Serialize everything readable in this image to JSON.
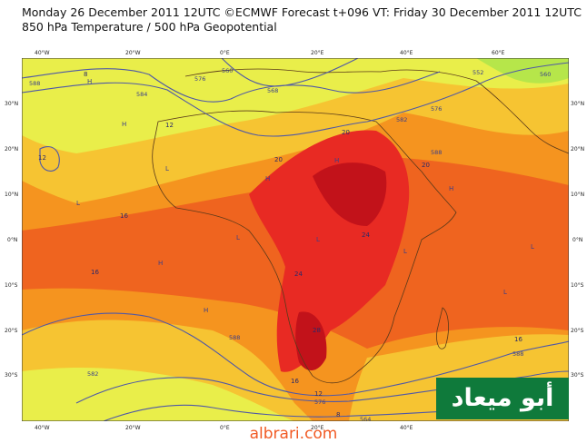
{
  "header": {
    "line1": "Monday 26 December 2011 12UTC ©ECMWF Forecast t+096 VT: Friday 30 December 2011 12UTC",
    "line2": "850 hPa Temperature / 500 hPa Geopotential"
  },
  "axes": {
    "lon_labels": [
      "40°W",
      "20°W",
      "0°E",
      "20°E",
      "40°E",
      "60°E"
    ],
    "lat_labels": [
      "30°N",
      "20°N",
      "10°N",
      "0°N",
      "10°S",
      "20°S",
      "30°S"
    ]
  },
  "contour_labels": {
    "temperature": [
      "8",
      "12",
      "16",
      "16",
      "12",
      "20",
      "20",
      "20",
      "24",
      "24",
      "28",
      "16",
      "12",
      "16",
      "8"
    ],
    "geopotential": [
      "588",
      "584",
      "576",
      "568",
      "560",
      "552",
      "576",
      "582",
      "588",
      "588",
      "588",
      "582",
      "576",
      "564",
      "560"
    ]
  },
  "pressure_marks": [
    "H",
    "L"
  ],
  "colors": {
    "temp_8_12": "#e9ee4a",
    "temp_12_16": "#f6c432",
    "temp_16_20": "#f5941f",
    "temp_20_24": "#ef641f",
    "temp_24_28": "#e82a23",
    "temp_28_plus": "#c2121a",
    "temp_lt_8": "#b6e64a",
    "contour_line": "#4f58a6",
    "coastline": "#5a3a1a",
    "logo_bg": "#0f7a3b",
    "site_text": "#f15a24"
  },
  "watermark": {
    "logo_text": "أبو ميعاد",
    "site_text": "albrari.com"
  }
}
